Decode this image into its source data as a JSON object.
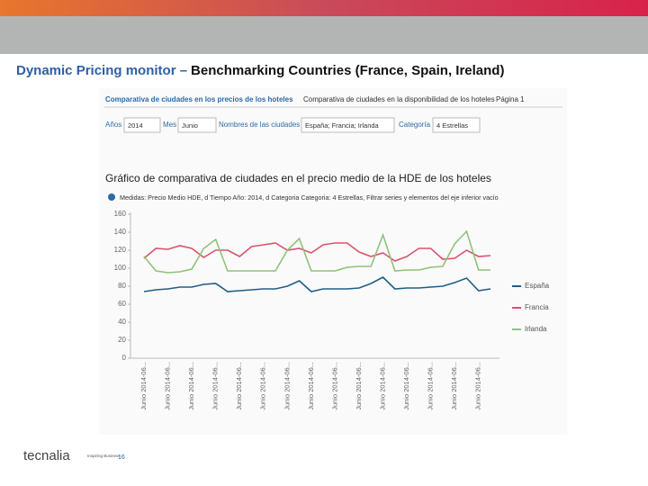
{
  "slide": {
    "title_lead": "Dynamic Pricing monitor –",
    "title_rest": "Benchmarking Countries (France, Spain, Ireland)",
    "logo": "tecnalia",
    "logo_tagline": "Inspiring Business",
    "page_number": "16"
  },
  "report": {
    "tab_active": "Comparativa de ciudades en los precios de los hoteles",
    "tab_other": "Comparativa de ciudades en la disponibilidad de los hoteles",
    "page": "Página 1",
    "filters": [
      {
        "label": "Años",
        "value": "2014"
      },
      {
        "label": "Mes",
        "value": "Junio"
      },
      {
        "label": "Nombres de las ciudades",
        "value": "España; Francia; Irlanda"
      },
      {
        "label": "Categoría",
        "value": "4 Estrellas"
      }
    ]
  },
  "chart_data": {
    "type": "line",
    "title": "Gráfico de comparativa de ciudades en el precio medio de la HDE de los hoteles",
    "subtitle": "Medidas: Precio Medio HDE, d Tiempo Año: 2014, d Categoria Categoria: 4 Estrellas, Filtrar series y elementos del eje inferior vacío",
    "categories": [
      "Junio 2014-06...",
      null,
      "Junio 2014-06...",
      null,
      "Junio 2014-06...",
      null,
      "Junio 2014-06...",
      null,
      "Junio 2014-06...",
      null,
      "Junio 2014-06...",
      null,
      "Junio 2014-06...",
      null,
      "Junio 2014-06...",
      null,
      "Junio 2014-06...",
      null,
      "Junio 2014-06...",
      null,
      "Junio 2014-06...",
      null,
      "Junio 2014-06...",
      null,
      "Junio 2014-06...",
      null,
      "Junio 2014-06...",
      null,
      "Junio 2014-06...",
      null
    ],
    "series": [
      {
        "name": "España",
        "color": "#1f5f86",
        "values": [
          74,
          76,
          77,
          79,
          79,
          82,
          83,
          74,
          75,
          76,
          77,
          77,
          80,
          86,
          74,
          77,
          77,
          77,
          78,
          83,
          90,
          77,
          78,
          78,
          79,
          80,
          84,
          89,
          75,
          77
        ]
      },
      {
        "name": "Francia",
        "color": "#d9536e",
        "values": [
          111,
          122,
          121,
          125,
          122,
          112,
          120,
          120,
          113,
          124,
          126,
          128,
          120,
          122,
          117,
          126,
          128,
          128,
          118,
          113,
          117,
          108,
          113,
          122,
          122,
          110,
          111,
          120,
          113,
          114
        ]
      },
      {
        "name": "Irlanda",
        "color": "#8fc27a",
        "values": [
          113,
          97,
          95,
          96,
          99,
          122,
          132,
          97,
          97,
          97,
          97,
          97,
          120,
          133,
          97,
          97,
          97,
          101,
          102,
          102,
          137,
          97,
          98,
          98,
          101,
          102,
          127,
          141,
          98,
          98
        ]
      }
    ],
    "ylim": [
      0,
      160
    ],
    "yticks": [
      0,
      20,
      40,
      60,
      80,
      100,
      120,
      140,
      160
    ],
    "grid": false,
    "legend": "right"
  }
}
